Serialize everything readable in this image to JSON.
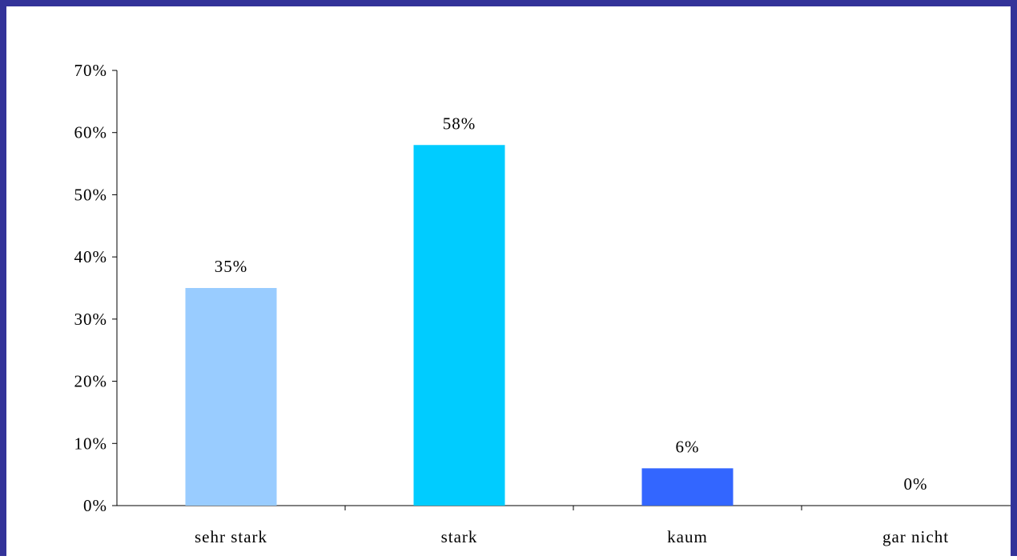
{
  "chart_data": {
    "type": "bar",
    "categories": [
      "sehr stark",
      "stark",
      "kaum",
      "gar nicht"
    ],
    "values": [
      35,
      58,
      6,
      0
    ],
    "value_labels": [
      "35%",
      "58%",
      "6%",
      "0%"
    ],
    "colors": [
      "#99ccff",
      "#00ccff",
      "#3366ff",
      "#3366ff"
    ],
    "frame_color": "#333399",
    "ylim": [
      0,
      70
    ],
    "y_ticks": [
      0,
      10,
      20,
      30,
      40,
      50,
      60,
      70
    ],
    "y_tick_labels": [
      "0%",
      "10%",
      "20%",
      "30%",
      "40%",
      "50%",
      "60%",
      "70%"
    ],
    "grid": false,
    "legend": "none",
    "title": "",
    "xlabel": "",
    "ylabel": ""
  }
}
